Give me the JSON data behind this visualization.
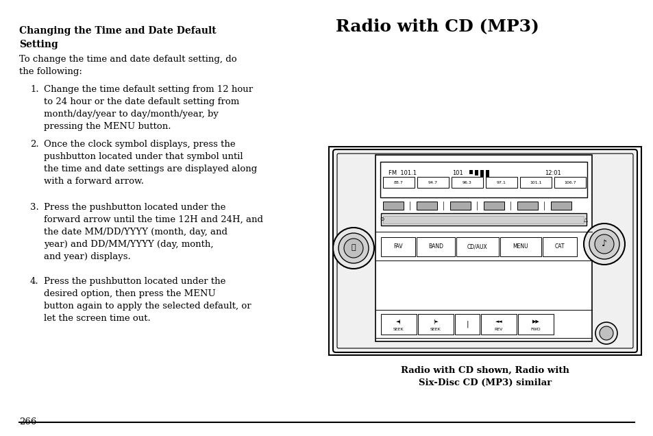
{
  "bg_color": "#ffffff",
  "page_number": "266",
  "left_heading": "Changing the Time and Date Default\nSetting",
  "left_intro": "To change the time and date default setting, do\nthe following:",
  "items": [
    "Change the time default setting from 12 hour\nto 24 hour or the date default setting from\nmonth/day/year to day/month/year, by\npressing the MENU button.",
    "Once the clock symbol displays, press the\npushbutton located under that symbol until\nthe time and date settings are displayed along\nwith a forward arrow.",
    "Press the pushbutton located under the\nforward arrow until the time 12H and 24H, and\nthe date MM/DD/YYYY (month, day, and\nyear) and DD/MM/YYYY (day, month,\nand year) displays.",
    "Press the pushbutton located under the\ndesired option, then press the MENU\nbutton again to apply the selected default, or\nlet the screen time out."
  ],
  "right_title": "Radio with CD (MP3)",
  "caption1": "Radio with CD shown, Radio with",
  "caption2": "Six-Disc CD (MP3) similar",
  "freq_vals": [
    "88.7",
    "94.7",
    "96.3",
    "97.1",
    "101.1",
    "106.7"
  ],
  "display_line1_a": "FM  101.1",
  "display_line1_b": "101",
  "display_line1_c": "12:01",
  "btn_row1": [
    "FAV",
    "BAND",
    "CD/AUX",
    "MENU",
    "CAT"
  ],
  "btn_row2_sym": [
    "⋔",
    "⋕",
    "|",
    "⋔⋔",
    "⋕⋕"
  ],
  "btn_row2_lbl": [
    "SEEK",
    "SEEK",
    "",
    "REV",
    "FWD"
  ]
}
